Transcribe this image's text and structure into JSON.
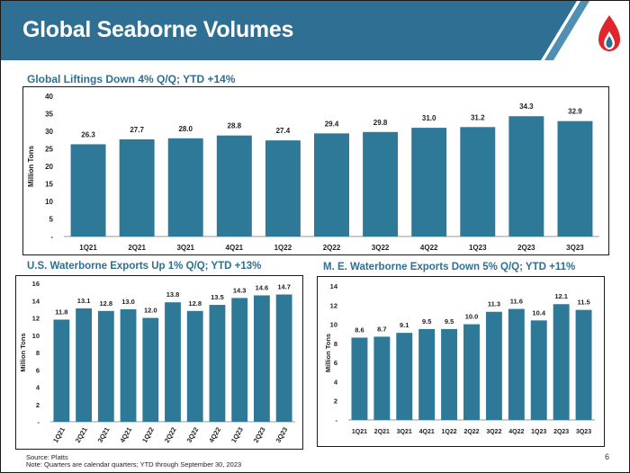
{
  "slide": {
    "title": "Global Seaborne Volumes",
    "page_number": "6",
    "colors": {
      "accent": "#2e6f93",
      "bar": "#2e7898",
      "banner_light": "#4f8fb2",
      "logo_red": "#e0262d",
      "logo_blue": "#2e6f93"
    }
  },
  "footer": {
    "source": "Source: Platts",
    "note": "Note: Quarters are calendar quarters; YTD through September 30, 2023"
  },
  "chart_data": [
    {
      "id": "global",
      "type": "bar",
      "title": "Global Liftings Down 4% Q/Q; YTD +14%",
      "ylabel": "Million Tons",
      "xlabel": "",
      "categories": [
        "1Q21",
        "2Q21",
        "3Q21",
        "4Q21",
        "1Q22",
        "2Q22",
        "3Q22",
        "4Q22",
        "1Q23",
        "2Q23",
        "3Q23"
      ],
      "values": [
        26.3,
        27.7,
        28.0,
        28.8,
        27.4,
        29.4,
        29.8,
        31.0,
        31.2,
        34.3,
        32.9
      ],
      "ylim": [
        0,
        40
      ],
      "yticks": [
        "-",
        "5",
        "10",
        "15",
        "20",
        "25",
        "30",
        "35",
        "40"
      ],
      "value_labels": [
        "26.3",
        "27.7",
        "28.0",
        "28.8",
        "27.4",
        "29.4",
        "29.8",
        "31.0",
        "31.2",
        "34.3",
        "32.9"
      ],
      "grid": false
    },
    {
      "id": "us",
      "type": "bar",
      "title": "U.S. Waterborne Exports Up 1% Q/Q; YTD +13%",
      "ylabel": "Million Tons",
      "xlabel": "",
      "categories": [
        "1Q21",
        "2Q21",
        "3Q21",
        "4Q21",
        "1Q22",
        "2Q22",
        "3Q22",
        "4Q22",
        "1Q23",
        "2Q23",
        "3Q23"
      ],
      "values": [
        11.8,
        13.1,
        12.8,
        13.0,
        12.0,
        13.8,
        12.8,
        13.5,
        14.3,
        14.6,
        14.7
      ],
      "ylim": [
        0,
        16
      ],
      "yticks": [
        "-",
        "2",
        "4",
        "6",
        "8",
        "10",
        "12",
        "14",
        "16"
      ],
      "value_labels": [
        "11.8",
        "13.1",
        "12.8",
        "13.0",
        "12.0",
        "13.8",
        "12.8",
        "13.5",
        "14.3",
        "14.6",
        "14.7"
      ],
      "grid": false
    },
    {
      "id": "me",
      "type": "bar",
      "title": "M. E. Waterborne Exports Down 5% Q/Q; YTD +11%",
      "ylabel": "Million Tons",
      "xlabel": "",
      "categories": [
        "1Q21",
        "2Q21",
        "3Q21",
        "4Q21",
        "1Q22",
        "2Q22",
        "3Q22",
        "4Q22",
        "1Q23",
        "2Q23",
        "3Q23"
      ],
      "values": [
        8.6,
        8.7,
        9.1,
        9.5,
        9.5,
        10.0,
        11.3,
        11.6,
        10.4,
        12.1,
        11.5
      ],
      "ylim": [
        0,
        14
      ],
      "yticks": [
        "-",
        "2",
        "4",
        "6",
        "8",
        "10",
        "12",
        "14"
      ],
      "value_labels": [
        "8.6",
        "8.7",
        "9.1",
        "9.5",
        "9.5",
        "10.0",
        "11.3",
        "11.6",
        "10.4",
        "12.1",
        "11.5"
      ],
      "grid": false
    }
  ]
}
